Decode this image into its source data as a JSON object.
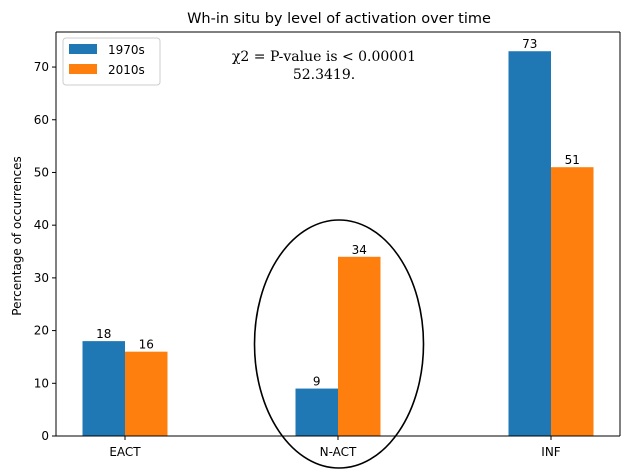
{
  "chart_data": {
    "type": "bar",
    "title": "Wh-in situ by level of activation over time",
    "xlabel": "",
    "ylabel": "Percentage of occurrences",
    "categories": [
      "EACT",
      "N-ACT",
      "INF"
    ],
    "series": [
      {
        "name": "1970s",
        "values": [
          18,
          9,
          73
        ],
        "color": "#1f77b4"
      },
      {
        "name": "2010s",
        "values": [
          16,
          34,
          51
        ],
        "color": "#ff7f0e"
      }
    ],
    "data_labels": [
      [
        "18",
        "9",
        "73"
      ],
      [
        "16",
        "34",
        "51"
      ]
    ],
    "ylim": [
      0,
      76.65
    ],
    "yticks": [
      0,
      10,
      20,
      30,
      40,
      50,
      60,
      70
    ],
    "ytick_labels": [
      "0",
      "10",
      "20",
      "30",
      "40",
      "50",
      "60",
      "70"
    ],
    "grid": false,
    "legend_position": "top-left",
    "annotation": {
      "line1": "χ2 = P-value is < 0.00001",
      "line2": "52.3419."
    },
    "highlight": "ellipse around N-ACT"
  }
}
